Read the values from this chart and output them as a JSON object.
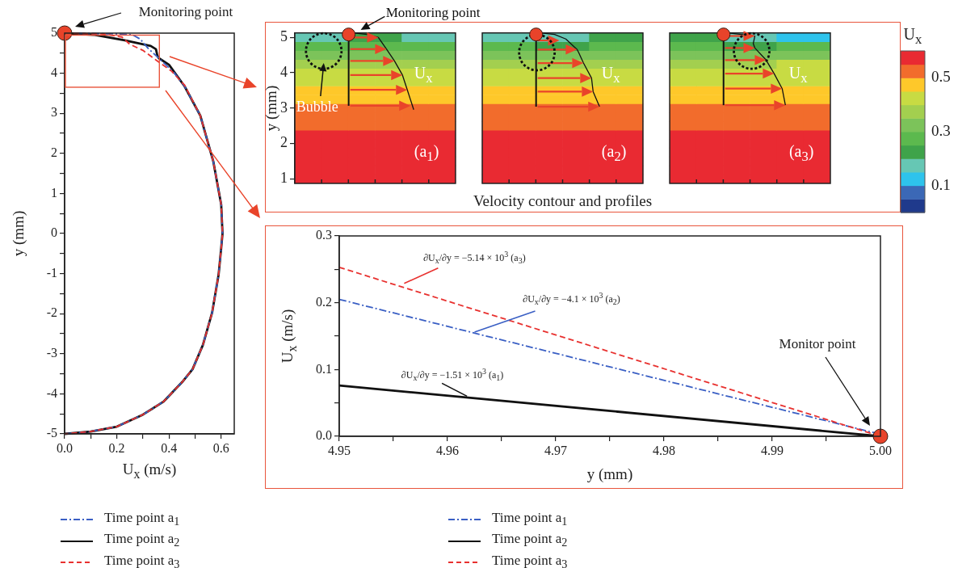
{
  "chart_data": [
    {
      "type": "line",
      "xlabel": "U$_{x}$ (m/s)",
      "ylabel": "y (mm)",
      "xlim": [
        0,
        0.65
      ],
      "ylim": [
        -5,
        5
      ],
      "xticks": [
        {
          "value": 0,
          "label": "0.0"
        },
        {
          "value": 0.1,
          "label": null
        },
        {
          "value": 0.2,
          "label": "0.2"
        },
        {
          "value": 0.3,
          "label": null
        },
        {
          "value": 0.4,
          "label": "0.4"
        },
        {
          "value": 0.5,
          "label": null
        },
        {
          "value": 0.6,
          "label": "0.6"
        }
      ],
      "yticks": [
        -5,
        {
          "value": -4.5,
          "label": null
        },
        -4,
        {
          "value": -3.5,
          "label": null
        },
        -3,
        {
          "value": -2.5,
          "label": null
        },
        -2,
        {
          "value": -1.5,
          "label": null
        },
        -1,
        {
          "value": -0.5,
          "label": null
        },
        0,
        {
          "value": 0.5,
          "label": null
        },
        1,
        {
          "value": 1.5,
          "label": null
        },
        2,
        {
          "value": 2.5,
          "label": null
        },
        3,
        {
          "value": 3.5,
          "label": null
        },
        4,
        {
          "value": 4.5,
          "label": null
        },
        5
      ],
      "grid": false,
      "legend": "bottom",
      "annotations": [
        "Monitoring point"
      ],
      "series": [
        {
          "name": "Time point a$_{1}$",
          "color": "#3a5fc4",
          "line_style": "dashdot",
          "x": [
            0,
            0.2,
            0.26,
            0.29,
            0.32,
            0.36,
            0.42,
            0.46,
            0.52,
            0.57,
            0.6,
            0.605,
            0.6,
            0.59,
            0.565,
            0.53,
            0.49,
            0.45,
            0.38,
            0.3,
            0.2,
            0.1,
            0
          ],
          "values": [
            5,
            4.98,
            4.96,
            4.85,
            4.62,
            4.38,
            4.01,
            3.67,
            2.94,
            1.79,
            0.72,
            0,
            -0.36,
            -1.03,
            -1.98,
            -2.78,
            -3.39,
            -3.71,
            -4.19,
            -4.52,
            -4.82,
            -4.94,
            -5
          ]
        },
        {
          "name": "Time point a$_{2}$",
          "color": "#111111",
          "line_style": "solid",
          "x": [
            0,
            0.11,
            0.23,
            0.33,
            0.35,
            0.355,
            0.36,
            0.4,
            0.46,
            0.52,
            0.57,
            0.6,
            0.605,
            0.6,
            0.59,
            0.565,
            0.53,
            0.49,
            0.45,
            0.38,
            0.3,
            0.2,
            0.1,
            0
          ],
          "values": [
            5,
            4.96,
            4.82,
            4.68,
            4.6,
            4.45,
            4.38,
            4.21,
            3.67,
            2.94,
            1.79,
            0.72,
            0,
            -0.36,
            -1.03,
            -1.98,
            -2.78,
            -3.39,
            -3.71,
            -4.19,
            -4.52,
            -4.82,
            -4.94,
            -5
          ]
        },
        {
          "name": "Time point a$_{3}$",
          "color": "#e8312f",
          "line_style": "dashed",
          "x": [
            0,
            0.15,
            0.22,
            0.25,
            0.3,
            0.35,
            0.41,
            0.46,
            0.52,
            0.57,
            0.6,
            0.605,
            0.6,
            0.59,
            0.565,
            0.53,
            0.49,
            0.45,
            0.38,
            0.3,
            0.2,
            0.1,
            0
          ],
          "values": [
            5,
            4.98,
            4.9,
            4.72,
            4.57,
            4.33,
            4.05,
            3.7,
            2.94,
            1.79,
            0.72,
            0,
            -0.36,
            -1.03,
            -1.98,
            -2.78,
            -3.39,
            -3.71,
            -4.19,
            -4.52,
            -4.82,
            -4.94,
            -5
          ]
        },
        {
          "type": "scatter",
          "color": "#e8432a",
          "marker": "circle",
          "x": [
            0
          ],
          "values": [
            5
          ]
        }
      ]
    },
    {
      "type": "heatmap",
      "xlabel": "Velocity contour and profiles",
      "ylabel": "y (mm)",
      "clabel": "U$_{x}$",
      "clim": [
        0,
        0.6
      ],
      "cticks": [
        0.1,
        0.3,
        0.5
      ],
      "categories": [
        null,
        null,
        null,
        null,
        null,
        null,
        null,
        null,
        null,
        null,
        null,
        null,
        null,
        null,
        null,
        null,
        null,
        null,
        null,
        null
      ],
      "y_categories": [
        "5",
        null,
        null,
        null,
        "4",
        null,
        null,
        null,
        "3",
        null,
        null,
        null,
        "2",
        null,
        null,
        null,
        "1"
      ],
      "annotations": [
        "Bubble",
        "U$_{x}$",
        "(a$_{1}$)",
        "Monitoring point",
        "U$_{x}$",
        "(a$_{2}$)",
        "U$_{x}$",
        "(a$_{3}$)"
      ],
      "cells": [
        [
          0.175,
          0.175,
          0.225,
          0.225,
          0.175,
          0.175,
          null,
          0.175,
          0.175,
          0.175,
          0.175,
          0.225,
          0.225,
          null,
          0.225,
          0.225,
          0.175,
          0.175,
          0.125,
          0.125
        ],
        [
          0.275,
          0.275,
          0.275,
          0.275,
          0.275,
          0.275,
          null,
          0.275,
          0.275,
          0.225,
          0.225,
          0.275,
          0.275,
          null,
          0.275,
          0.275,
          0.225,
          0.225,
          0.275,
          0.275
        ],
        [
          0.325,
          0.325,
          0.325,
          0.325,
          0.325,
          0.325,
          null,
          0.325,
          0.325,
          0.325,
          0.325,
          0.325,
          0.325,
          null,
          0.325,
          0.325,
          0.325,
          0.325,
          0.325,
          0.325
        ],
        [
          0.375,
          0.375,
          0.375,
          0.375,
          0.375,
          0.375,
          null,
          0.375,
          0.375,
          0.375,
          0.375,
          0.375,
          0.375,
          null,
          0.375,
          0.375,
          0.375,
          0.375,
          0.425,
          0.425
        ],
        [
          0.425,
          0.425,
          0.425,
          0.425,
          0.425,
          0.425,
          null,
          0.425,
          0.425,
          0.425,
          0.425,
          0.425,
          0.425,
          null,
          0.425,
          0.425,
          0.425,
          0.425,
          0.425,
          0.425
        ],
        [
          0.425,
          0.425,
          0.425,
          0.425,
          0.425,
          0.425,
          null,
          0.425,
          0.425,
          0.425,
          0.425,
          0.425,
          0.425,
          null,
          0.425,
          0.425,
          0.425,
          0.425,
          0.425,
          0.425
        ],
        [
          0.475,
          0.475,
          0.475,
          0.475,
          0.475,
          0.475,
          null,
          0.475,
          0.475,
          0.475,
          0.475,
          0.475,
          0.475,
          null,
          0.475,
          0.475,
          0.475,
          0.475,
          0.475,
          0.475
        ],
        [
          0.475,
          0.475,
          0.475,
          0.475,
          0.475,
          0.475,
          null,
          0.475,
          0.475,
          0.475,
          0.475,
          0.475,
          0.475,
          null,
          0.475,
          0.475,
          0.475,
          0.475,
          0.475,
          0.475
        ],
        [
          0.525,
          0.525,
          0.525,
          0.525,
          0.525,
          0.525,
          null,
          0.525,
          0.525,
          0.525,
          0.525,
          0.525,
          0.525,
          null,
          0.525,
          0.525,
          0.525,
          0.525,
          0.525,
          0.525
        ],
        [
          0.525,
          0.525,
          0.525,
          0.525,
          0.525,
          0.525,
          null,
          0.525,
          0.525,
          0.525,
          0.525,
          0.525,
          0.525,
          null,
          0.525,
          0.525,
          0.525,
          0.525,
          0.525,
          0.525
        ],
        [
          0.525,
          0.525,
          0.525,
          0.525,
          0.525,
          0.525,
          null,
          0.525,
          0.525,
          0.525,
          0.525,
          0.525,
          0.525,
          null,
          0.525,
          0.525,
          0.525,
          0.525,
          0.525,
          0.525
        ],
        [
          0.575,
          0.575,
          0.575,
          0.575,
          0.575,
          0.575,
          null,
          0.575,
          0.575,
          0.575,
          0.575,
          0.575,
          0.575,
          null,
          0.575,
          0.575,
          0.575,
          0.575,
          0.575,
          0.575
        ],
        [
          0.575,
          0.575,
          0.575,
          0.575,
          0.575,
          0.575,
          null,
          0.575,
          0.575,
          0.575,
          0.575,
          0.575,
          0.575,
          null,
          0.575,
          0.575,
          0.575,
          0.575,
          0.575,
          0.575
        ],
        [
          0.575,
          0.575,
          0.575,
          0.575,
          0.575,
          0.575,
          null,
          0.575,
          0.575,
          0.575,
          0.575,
          0.575,
          0.575,
          null,
          0.575,
          0.575,
          0.575,
          0.575,
          0.575,
          0.575
        ],
        [
          0.575,
          0.575,
          0.575,
          0.575,
          0.575,
          0.575,
          null,
          0.575,
          0.575,
          0.575,
          0.575,
          0.575,
          0.575,
          null,
          0.575,
          0.575,
          0.575,
          0.575,
          0.575,
          0.575
        ],
        [
          0.575,
          0.575,
          0.575,
          0.575,
          0.575,
          0.575,
          null,
          0.575,
          0.575,
          0.575,
          0.575,
          0.575,
          0.575,
          null,
          0.575,
          0.575,
          0.575,
          0.575,
          0.575,
          0.575
        ],
        [
          0.575,
          0.575,
          0.575,
          0.575,
          0.575,
          0.575,
          null,
          0.575,
          0.575,
          0.575,
          0.575,
          0.575,
          0.575,
          null,
          0.575,
          0.575,
          0.575,
          0.575,
          0.575,
          0.575
        ]
      ]
    },
    {
      "type": "line",
      "xlabel": "y (mm)",
      "ylabel": "U$_{x}$ (m/s)",
      "xlim": [
        4.95,
        5.0
      ],
      "ylim": [
        0,
        0.3
      ],
      "xticks": [
        4.95,
        {
          "value": 4.955,
          "label": null
        },
        4.96,
        {
          "value": 4.965,
          "label": null
        },
        4.97,
        {
          "value": 4.975,
          "label": null
        },
        4.98,
        {
          "value": 4.985,
          "label": null
        },
        4.99,
        {
          "value": 4.995,
          "label": null
        },
        {
          "value": 5.0,
          "label": "5.00"
        }
      ],
      "yticks": [
        {
          "value": 0,
          "label": "0.0"
        },
        {
          "value": 0.05,
          "label": null
        },
        0.1,
        {
          "value": 0.15,
          "label": null
        },
        0.2,
        {
          "value": 0.25,
          "label": null
        },
        0.3
      ],
      "grid": false,
      "legend": "bottom",
      "annotations": [
        {
          "text": "∂U$_{x}$/∂y = −5.14 × 10$^{3}$ (a$_{3}$)",
          "x": 4.956,
          "y": 0.229
        },
        {
          "text": "∂U$_{x}$/∂y = −4.1 × 10$^{3}$ (a$_{2}$)",
          "x": 4.9625,
          "y": 0.156
        },
        {
          "text": "∂U$_{x}$/∂y = −1.51 × 10$^{3}$ (a$_{1}$)",
          "x": 4.9618,
          "y": 0.06
        },
        "Monitor point"
      ],
      "series": [
        {
          "name": "Time point a$_{1}$",
          "color": "#3a5fc4",
          "line_style": "dashdot",
          "x": [
            4.95,
            5.0
          ],
          "values": [
            0.205,
            0.003
          ]
        },
        {
          "name": "Time point a$_{2}$",
          "color": "#111111",
          "line_style": "solid",
          "x": [
            4.95,
            5.0
          ],
          "values": [
            0.076,
            0
          ]
        },
        {
          "name": "Time point a$_{3}$",
          "color": "#e8312f",
          "line_style": "dashed",
          "x": [
            4.95,
            5.0
          ],
          "values": [
            0.253,
            0
          ]
        },
        {
          "type": "scatter",
          "color": "#e8432a",
          "marker": "circle",
          "x": [
            5.0
          ],
          "values": [
            0
          ]
        }
      ]
    }
  ]
}
